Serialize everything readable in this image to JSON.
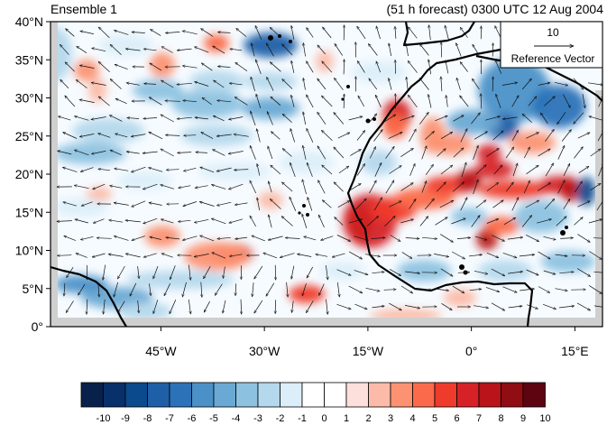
{
  "header": {
    "ensemble_label": "Ensemble 1",
    "forecast_label": "(51 h forecast) 0300 UTC 12 Aug 2004"
  },
  "map": {
    "lat_labels": [
      "40°N",
      "35°N",
      "30°N",
      "25°N",
      "20°N",
      "15°N",
      "10°N",
      "5°N",
      "0°"
    ],
    "lon_labels": [
      "45°W",
      "30°W",
      "15°W",
      "0°",
      "15°E"
    ],
    "lat_values": [
      40,
      35,
      30,
      25,
      20,
      15,
      10,
      5,
      0
    ],
    "lon_values": [
      -45,
      -30,
      -15,
      0,
      15
    ],
    "lon_range": [
      -61,
      19
    ],
    "lat_range": [
      0,
      40
    ]
  },
  "reference_vector": {
    "magnitude_label": "10",
    "caption": "Reference Vector"
  },
  "colorbar": {
    "labels": [
      "-10",
      "-9",
      "-8",
      "-7",
      "-6",
      "-5",
      "-4",
      "-3",
      "-2",
      "-1",
      "0",
      "1",
      "2",
      "3",
      "4",
      "5",
      "6",
      "7",
      "8",
      "9",
      "10"
    ],
    "colors": [
      "#08214a",
      "#08306b",
      "#0b4a8c",
      "#1f5fa8",
      "#2b72b8",
      "#4b91c8",
      "#6aa9d4",
      "#8cc2e0",
      "#b4d8ec",
      "#dbeef9",
      "#ffffff",
      "#ffffff",
      "#fde0dc",
      "#fcbba8",
      "#fc9272",
      "#fb6a4a",
      "#ef3b2c",
      "#d62226",
      "#b91419",
      "#8f0d13",
      "#5c0510"
    ]
  }
}
